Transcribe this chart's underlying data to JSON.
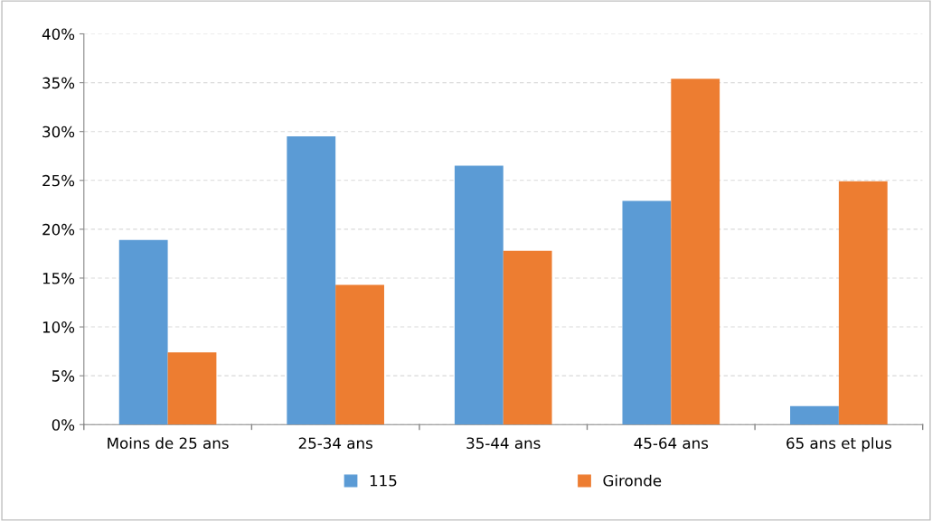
{
  "chart_data": {
    "type": "bar",
    "categories": [
      "Moins de 25 ans",
      "25-34 ans",
      "35-44 ans",
      "45-64 ans",
      "65 ans et plus"
    ],
    "series": [
      {
        "name": "115",
        "color": "#5b9bd5",
        "values": [
          18.9,
          29.5,
          26.5,
          22.9,
          1.9
        ]
      },
      {
        "name": "Gironde",
        "color": "#ed7d31",
        "values": [
          7.4,
          14.3,
          17.8,
          35.4,
          24.9
        ]
      }
    ],
    "ylim": [
      0,
      40
    ],
    "yticks": [
      {
        "value": 0,
        "label": "0%"
      },
      {
        "value": 5,
        "label": "5%"
      },
      {
        "value": 10,
        "label": "10%"
      },
      {
        "value": 15,
        "label": "15%"
      },
      {
        "value": 20,
        "label": "20%"
      },
      {
        "value": 25,
        "label": "25%"
      },
      {
        "value": 30,
        "label": "30%"
      },
      {
        "value": 35,
        "label": "35%"
      },
      {
        "value": 40,
        "label": "40%"
      }
    ],
    "grid": "y",
    "legend": "bottom"
  }
}
